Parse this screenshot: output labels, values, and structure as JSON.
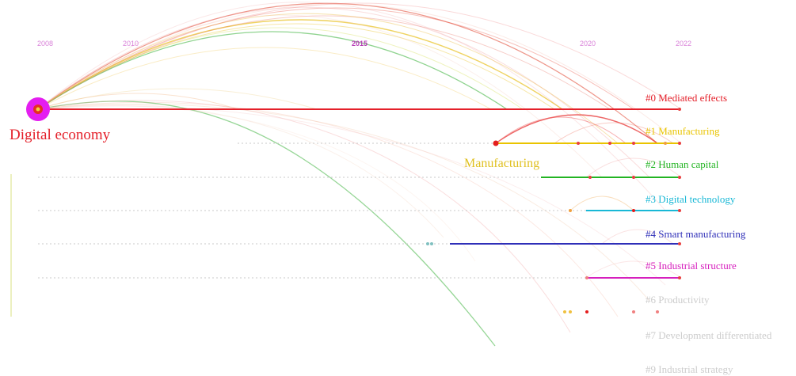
{
  "years": [
    "2008",
    "2010",
    "2015",
    "2020",
    "2022"
  ],
  "node_labels": {
    "digital_economy": "Digital economy",
    "manufacturing": "Manufacturing"
  },
  "clusters": [
    {
      "label": "#0 Mediated effects",
      "color": "#e4202a"
    },
    {
      "label": "#1 Manufacturing",
      "color": "#e9c400"
    },
    {
      "label": "#2 Human capital",
      "color": "#22b422"
    },
    {
      "label": "#3 Digital technology",
      "color": "#19b8d6"
    },
    {
      "label": "#4 Smart manufacturing",
      "color": "#2f2fb8"
    },
    {
      "label": "#5 Industrial structure",
      "color": "#d61fbd"
    },
    {
      "label": "#6 Productivity",
      "color": "#c4c4c4"
    },
    {
      "label": "#7 Development differentiated",
      "color": "#c4c4c4"
    },
    {
      "label": "#9 Industrial strategy",
      "color": "#c4c4c4"
    }
  ]
}
